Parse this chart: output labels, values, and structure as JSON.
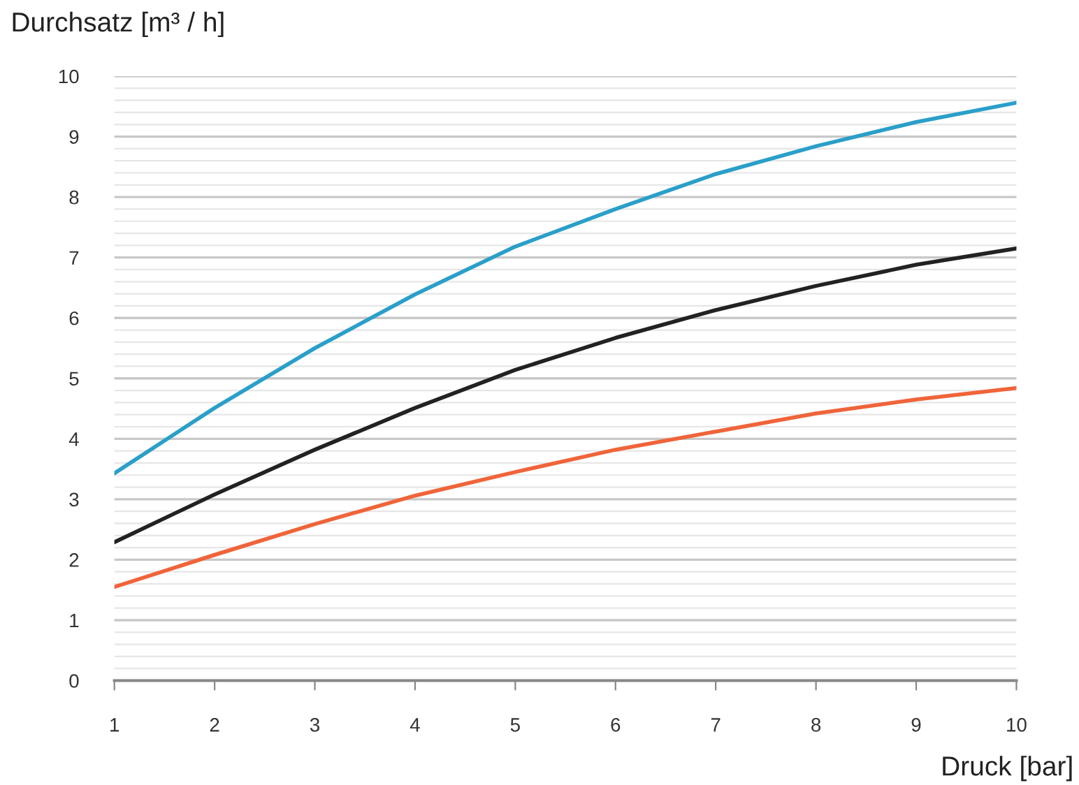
{
  "chart_data": {
    "type": "line",
    "ylabel": "Durchsatz [m³ / h]",
    "xlabel": "Druck [bar]",
    "x": [
      1,
      2,
      3,
      4,
      5,
      6,
      7,
      8,
      9,
      10
    ],
    "series": [
      {
        "color": "#2a9fc9",
        "values": [
          3.43,
          4.51,
          5.5,
          6.39,
          7.18,
          7.8,
          8.38,
          8.84,
          9.24,
          9.56
        ]
      },
      {
        "color": "#222222",
        "values": [
          2.29,
          3.08,
          3.82,
          4.51,
          5.14,
          5.67,
          6.13,
          6.53,
          6.88,
          7.15
        ]
      },
      {
        "color": "#f0643a",
        "values": [
          1.55,
          2.08,
          2.59,
          3.06,
          3.45,
          3.82,
          4.12,
          4.42,
          4.65,
          4.84
        ]
      }
    ],
    "xlim": [
      1,
      10
    ],
    "xticks": [
      1,
      2,
      3,
      4,
      5,
      6,
      7,
      8,
      9,
      10
    ],
    "ylim": [
      0,
      10
    ],
    "yticks": [
      0,
      {
        "value": 0.2,
        "label": null
      },
      {
        "value": 0.4,
        "label": null
      },
      {
        "value": 0.6,
        "label": null
      },
      {
        "value": 0.8,
        "label": null
      },
      1,
      {
        "value": 1.2,
        "label": null
      },
      {
        "value": 1.4,
        "label": null
      },
      {
        "value": 1.6,
        "label": null
      },
      {
        "value": 1.8,
        "label": null
      },
      2,
      {
        "value": 2.2,
        "label": null
      },
      {
        "value": 2.4,
        "label": null
      },
      {
        "value": 2.6,
        "label": null
      },
      {
        "value": 2.8,
        "label": null
      },
      3,
      {
        "value": 3.2,
        "label": null
      },
      {
        "value": 3.4,
        "label": null
      },
      {
        "value": 3.6,
        "label": null
      },
      {
        "value": 3.8,
        "label": null
      },
      4,
      {
        "value": 4.2,
        "label": null
      },
      {
        "value": 4.4,
        "label": null
      },
      {
        "value": 4.6,
        "label": null
      },
      {
        "value": 4.8,
        "label": null
      },
      5,
      {
        "value": 5.2,
        "label": null
      },
      {
        "value": 5.4,
        "label": null
      },
      {
        "value": 5.6,
        "label": null
      },
      {
        "value": 5.8,
        "label": null
      },
      6,
      {
        "value": 6.2,
        "label": null
      },
      {
        "value": 6.4,
        "label": null
      },
      {
        "value": 6.6,
        "label": null
      },
      {
        "value": 6.8,
        "label": null
      },
      7,
      {
        "value": 7.2,
        "label": null
      },
      {
        "value": 7.4,
        "label": null
      },
      {
        "value": 7.6,
        "label": null
      },
      {
        "value": 7.8,
        "label": null
      },
      8,
      {
        "value": 8.2,
        "label": null
      },
      {
        "value": 8.4,
        "label": null
      },
      {
        "value": 8.6,
        "label": null
      },
      {
        "value": 8.8,
        "label": null
      },
      9,
      {
        "value": 9.2,
        "label": null
      },
      {
        "value": 9.4,
        "label": null
      },
      {
        "value": 9.6,
        "label": null
      },
      {
        "value": 9.8,
        "label": null
      },
      10
    ],
    "grid": "y",
    "marker": "none",
    "line_style": "solid"
  }
}
